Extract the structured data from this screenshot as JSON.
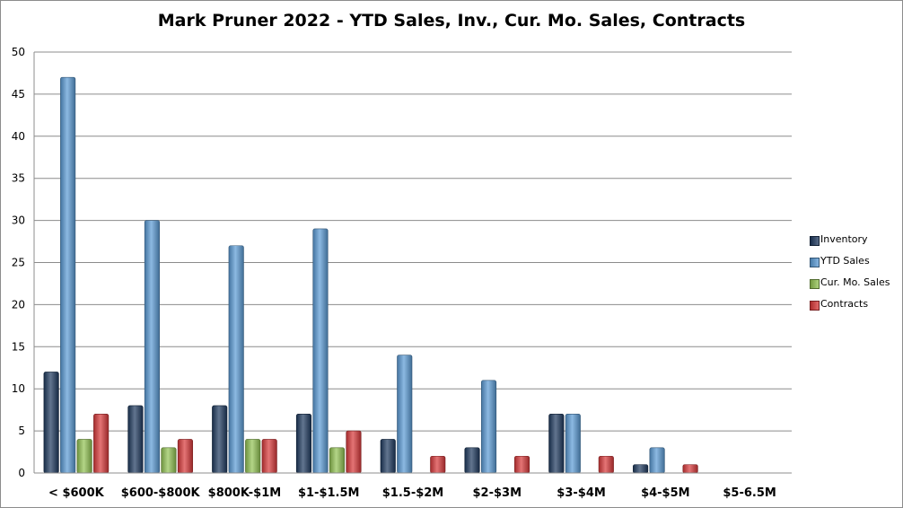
{
  "chart_data": {
    "type": "bar",
    "title": "Mark Pruner 2022 - YTD Sales, Inv., Cur. Mo. Sales, Contracts",
    "xlabel": "",
    "ylabel": "",
    "ylim": [
      0,
      50
    ],
    "yticks": [
      0,
      5,
      10,
      15,
      20,
      25,
      30,
      35,
      40,
      45,
      50
    ],
    "grid": true,
    "legend": "right",
    "categories": [
      "< $600K",
      "$600-$800K",
      "$800K-$1M",
      "$1-$1.5M",
      "$1.5-$2M",
      "$2-$3M",
      "$3-$4M",
      "$4-$5M",
      "$5-6.5M"
    ],
    "series": [
      {
        "name": "Inventory",
        "color": "#1f3a5f",
        "values": [
          12,
          8,
          8,
          7,
          4,
          3,
          7,
          1,
          0
        ]
      },
      {
        "name": "YTD Sales",
        "color": "#5b9bd5",
        "values": [
          47,
          30,
          27,
          29,
          14,
          11,
          7,
          3,
          0
        ]
      },
      {
        "name": "Cur. Mo. Sales",
        "color": "#92c353",
        "values": [
          4,
          3,
          4,
          3,
          0,
          0,
          0,
          0,
          0
        ]
      },
      {
        "name": "Contracts",
        "color": "#d9393a",
        "values": [
          7,
          4,
          4,
          5,
          2,
          2,
          2,
          1,
          0
        ]
      }
    ]
  }
}
